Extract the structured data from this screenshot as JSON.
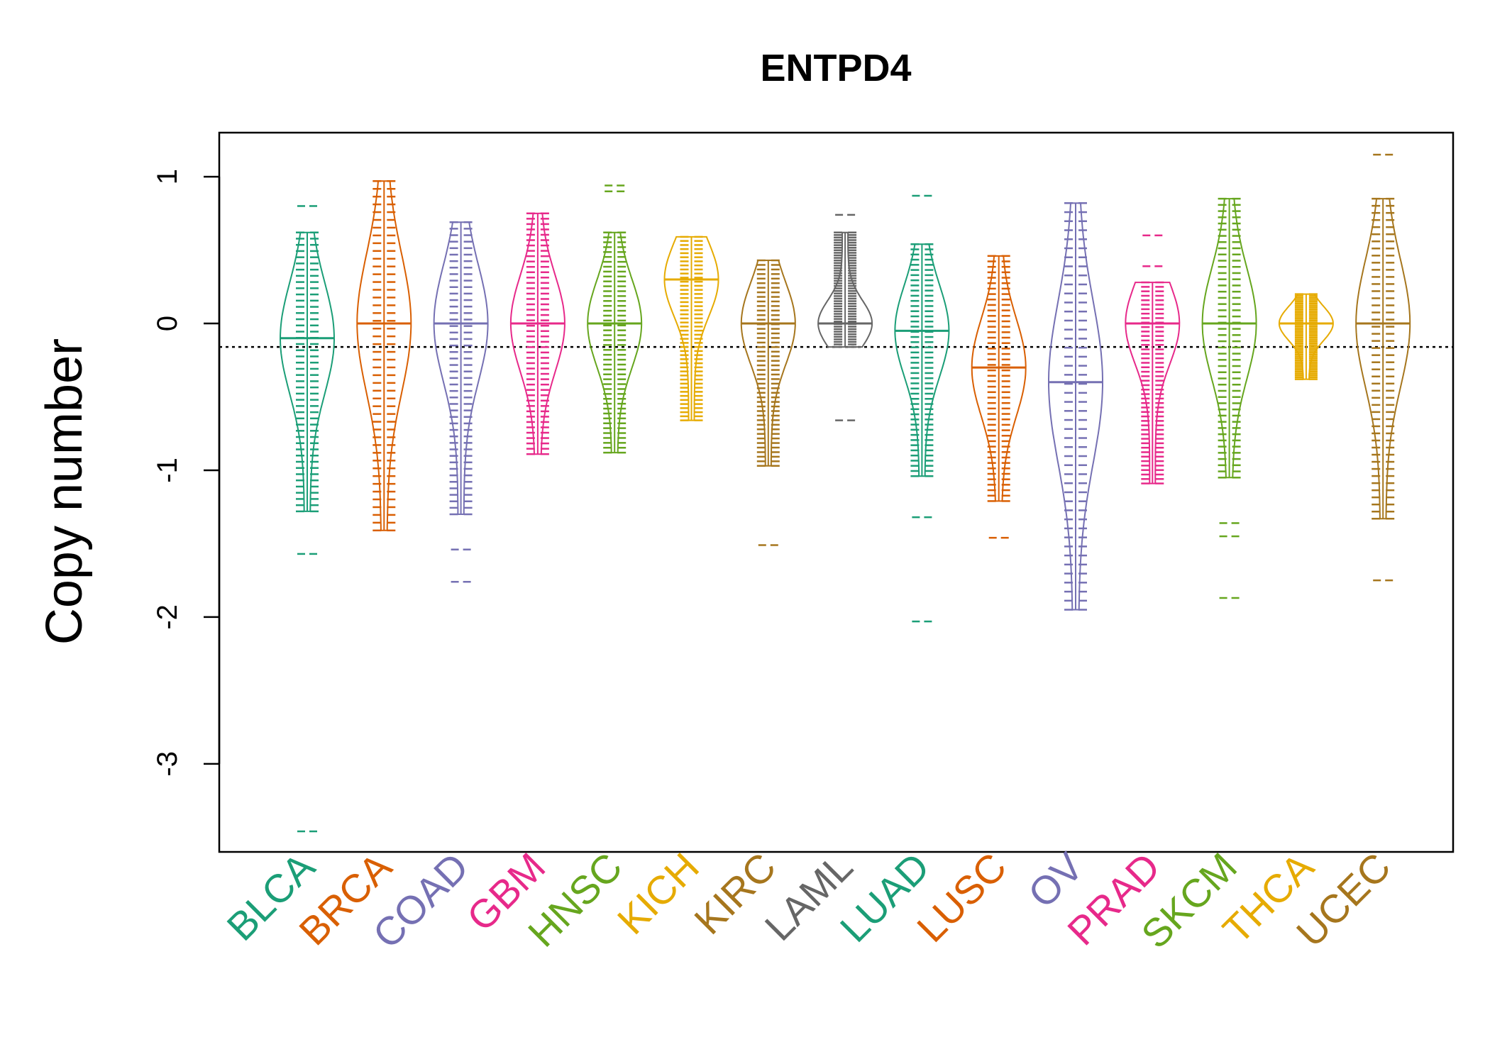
{
  "chart_data": {
    "type": "beanplot",
    "title": "ENTPD4",
    "ylabel": "Copy number",
    "xlabel": "",
    "ylim": [
      -3.6,
      1.3
    ],
    "yticks": [
      1,
      0,
      -1,
      -2,
      -3
    ],
    "ytick_labels": [
      "1",
      "0",
      "-1",
      "-2",
      "-3"
    ],
    "reference_line": -0.16,
    "categories": [
      "BLCA",
      "BRCA",
      "COAD",
      "GBM",
      "HNSC",
      "KICH",
      "KIRC",
      "LAML",
      "LUAD",
      "LUSC",
      "OV",
      "PRAD",
      "SKCM",
      "THCA",
      "UCEC"
    ],
    "colors": [
      "#1b9e77",
      "#d95f02",
      "#7570b3",
      "#e7298a",
      "#66a61e",
      "#e6ab02",
      "#a6761d",
      "#666666",
      "#1b9e77",
      "#d95f02",
      "#7570b3",
      "#e7298a",
      "#66a61e",
      "#e6ab02",
      "#a6761d"
    ],
    "series": [
      {
        "category": "BLCA",
        "min": -1.28,
        "max": 0.62,
        "mode": -0.1,
        "outliers": [
          0.8,
          -1.57,
          -3.46
        ]
      },
      {
        "category": "BRCA",
        "min": -1.41,
        "max": 0.97,
        "mode": 0.0,
        "outliers": []
      },
      {
        "category": "COAD",
        "min": -1.3,
        "max": 0.69,
        "mode": 0.0,
        "outliers": [
          -1.54,
          -1.76
        ]
      },
      {
        "category": "GBM",
        "min": -0.89,
        "max": 0.75,
        "mode": 0.0,
        "outliers": []
      },
      {
        "category": "HNSC",
        "min": -0.88,
        "max": 0.62,
        "mode": 0.0,
        "outliers": [
          0.9,
          0.94
        ]
      },
      {
        "category": "KICH",
        "min": -0.66,
        "max": 0.59,
        "mode": 0.3,
        "outliers": []
      },
      {
        "category": "KIRC",
        "min": -0.97,
        "max": 0.43,
        "mode": 0.0,
        "outliers": [
          -1.51
        ]
      },
      {
        "category": "LAML",
        "min": -0.16,
        "max": 0.62,
        "mode": 0.0,
        "outliers": [
          0.74,
          -0.66
        ]
      },
      {
        "category": "LUAD",
        "min": -1.04,
        "max": 0.54,
        "mode": -0.05,
        "outliers": [
          0.87,
          -1.32,
          -2.03
        ]
      },
      {
        "category": "LUSC",
        "min": -1.21,
        "max": 0.46,
        "mode": -0.3,
        "outliers": [
          -1.46
        ]
      },
      {
        "category": "OV",
        "min": -1.95,
        "max": 0.82,
        "mode": -0.4,
        "outliers": []
      },
      {
        "category": "PRAD",
        "min": -1.09,
        "max": 0.28,
        "mode": 0.0,
        "outliers": [
          0.39,
          0.6
        ]
      },
      {
        "category": "SKCM",
        "min": -1.05,
        "max": 0.85,
        "mode": 0.0,
        "outliers": [
          -1.36,
          -1.45,
          -1.87
        ]
      },
      {
        "category": "THCA",
        "min": -0.38,
        "max": 0.2,
        "mode": 0.0,
        "outliers": []
      },
      {
        "category": "UCEC",
        "min": -1.33,
        "max": 0.85,
        "mode": 0.0,
        "outliers": [
          1.15,
          -1.75
        ]
      }
    ],
    "grid": false,
    "legend": "none"
  }
}
